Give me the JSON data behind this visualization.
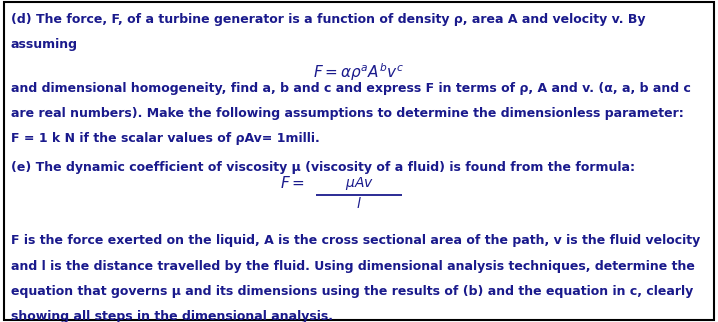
{
  "bg_color": "#ffffff",
  "border_color": "#000000",
  "text_color": "#1a1a8c",
  "fig_width": 7.18,
  "fig_height": 3.22,
  "dpi": 100,
  "line1": "(d) The force, F, of a turbine generator is a function of density ρ, area A and velocity v. By",
  "line2": "assuming",
  "line3": "and dimensional homogeneity, find a, b and c and express F in terms of ρ, A and v. (α, a, b and c",
  "line4": "are real numbers). Make the following assumptions to determine the dimensionless parameter:",
  "line5": "F = 1 k N if the scalar values of ρAv= 1milli.",
  "line6": "(e) The dynamic coefficient of viscosity μ (viscosity of a fluid) is found from the formula:",
  "line7": "F is the force exerted on the liquid, A is the cross sectional area of the path, v is the fluid velocity",
  "line8": "and l is the distance travelled by the fluid. Using dimensional analysis techniques, determine the",
  "line9": "equation that governs μ and its dimensions using the results of (b) and the equation in c, clearly",
  "line10": "showing all steps in the dimensional analysis.",
  "fs_text": 9.0,
  "fs_formula": 11.0
}
